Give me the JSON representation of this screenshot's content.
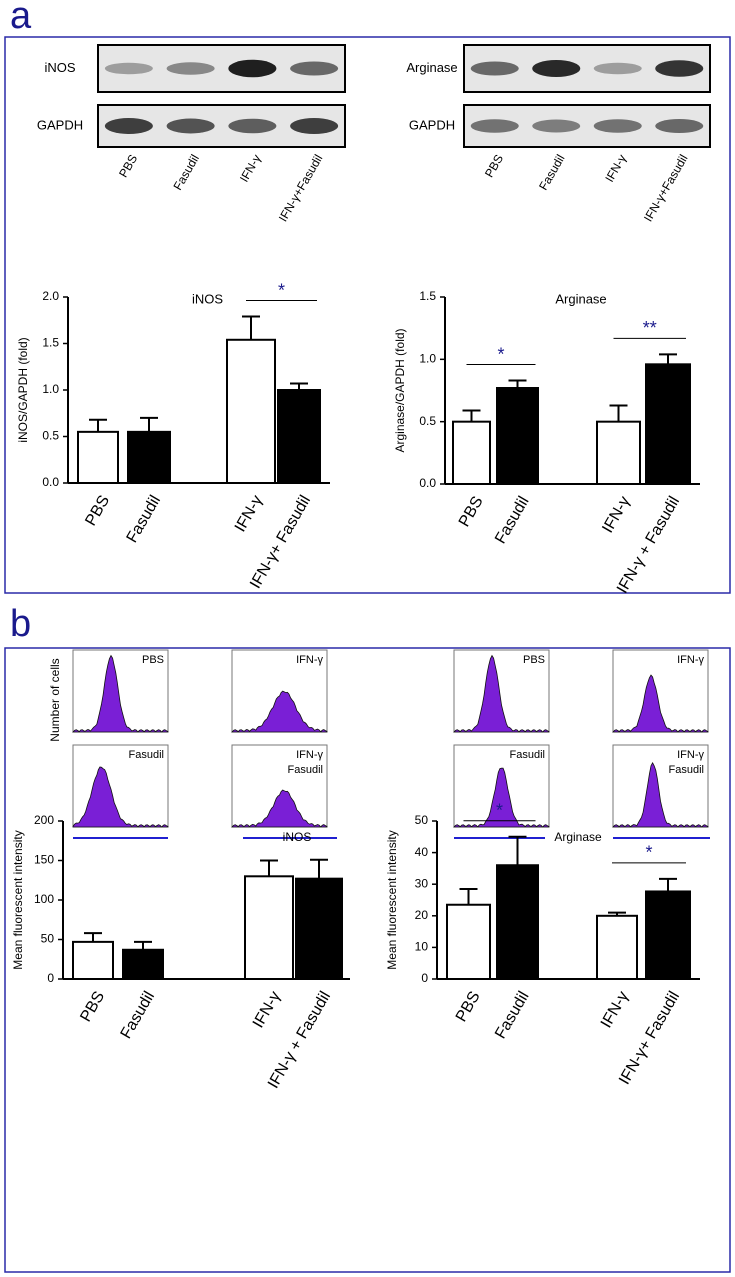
{
  "panel_a": {
    "label": "a",
    "blots": [
      {
        "target": "iNOS",
        "loading_control": "GAPDH",
        "lanes": [
          "PBS",
          "Fasudil",
          "IFN-γ",
          "IFN-γ+Fasudil"
        ]
      },
      {
        "target": "Arginase",
        "loading_control": "GAPDH",
        "lanes": [
          "PBS",
          "Fasudil",
          "IFN-γ",
          "IFN-γ+Fasudil"
        ]
      }
    ]
  },
  "panel_b": {
    "label": "b",
    "histogram_y_label": "Number of cells",
    "groups": [
      {
        "label": "iNOS",
        "plots": [
          [
            "PBS"
          ],
          [
            "IFN-γ"
          ],
          [
            "Fasudil"
          ],
          [
            "IFN-γ",
            "Fasudil"
          ]
        ]
      },
      {
        "label": "Arginase",
        "plots": [
          [
            "PBS"
          ],
          [
            "IFN-γ"
          ],
          [
            "Fasudil"
          ],
          [
            "IFN-γ",
            "Fasudil"
          ]
        ]
      }
    ]
  },
  "chart_data": [
    {
      "type": "bar",
      "title": "iNOS",
      "y_label": "iNOS/GAPDH (fold)",
      "categories": [
        "PBS",
        "Fasudil",
        "IFN-γ",
        "IFN-γ+ Fasudil"
      ],
      "values": [
        0.55,
        0.55,
        1.54,
        1.0
      ],
      "errors": [
        0.13,
        0.15,
        0.25,
        0.07
      ],
      "colors": [
        "#ffffff",
        "#000000",
        "#ffffff",
        "#000000"
      ],
      "ylim": [
        0,
        2
      ],
      "yticks": [
        {
          "value": 0,
          "label": "0.0"
        },
        {
          "value": 0.5,
          "label": "0.5"
        },
        {
          "value": 1,
          "label": "1.0"
        },
        {
          "value": 1.5,
          "label": "1.5"
        },
        {
          "value": 2,
          "label": "2.0"
        }
      ],
      "annotations": [
        {
          "text": "*",
          "bars": [
            2,
            3
          ]
        }
      ]
    },
    {
      "type": "bar",
      "title": "Arginase",
      "y_label": "Arginase/GAPDH (fold)",
      "categories": [
        "PBS",
        "Fasudil",
        "IFN-γ",
        "IFN-γ + Fasudil"
      ],
      "values": [
        0.5,
        0.77,
        0.5,
        0.96
      ],
      "errors": [
        0.09,
        0.06,
        0.13,
        0.08
      ],
      "colors": [
        "#ffffff",
        "#000000",
        "#ffffff",
        "#000000"
      ],
      "ylim": [
        0,
        1.5
      ],
      "yticks": [
        {
          "value": 0,
          "label": "0.0"
        },
        {
          "value": 0.5,
          "label": "0.5"
        },
        {
          "value": 1,
          "label": "1.0"
        },
        {
          "value": 1.5,
          "label": "1.5"
        }
      ],
      "annotations": [
        {
          "text": "*",
          "bars": [
            0,
            1
          ]
        },
        {
          "text": "**",
          "bars": [
            2,
            3
          ]
        }
      ]
    },
    {
      "type": "bar",
      "y_label": "Mean fluorescent intensity",
      "categories": [
        "PBS",
        "Fasudil",
        "IFN-γ",
        "IFN-γ + Fasudil"
      ],
      "values": [
        47,
        37,
        130,
        127
      ],
      "errors": [
        11,
        10,
        20,
        24
      ],
      "colors": [
        "#ffffff",
        "#000000",
        "#ffffff",
        "#000000"
      ],
      "ylim": [
        0,
        200
      ],
      "yticks": [
        0,
        50,
        100,
        150,
        200
      ],
      "annotations": []
    },
    {
      "type": "bar",
      "y_label": "Mean fluorescent intensity",
      "categories": [
        "PBS",
        "Fasudil",
        "IFN-γ",
        "IFN-γ+ Fasudil"
      ],
      "values": [
        23.5,
        36,
        20,
        27.7
      ],
      "errors": [
        5,
        9,
        1,
        4
      ],
      "colors": [
        "#ffffff",
        "#000000",
        "#ffffff",
        "#000000"
      ],
      "ylim": [
        0,
        50
      ],
      "yticks": [
        0,
        10,
        20,
        30,
        40,
        50
      ],
      "annotations": [
        {
          "text": "*",
          "bars": [
            0,
            1
          ]
        },
        {
          "text": "*",
          "bars": [
            2,
            3
          ]
        }
      ]
    }
  ]
}
